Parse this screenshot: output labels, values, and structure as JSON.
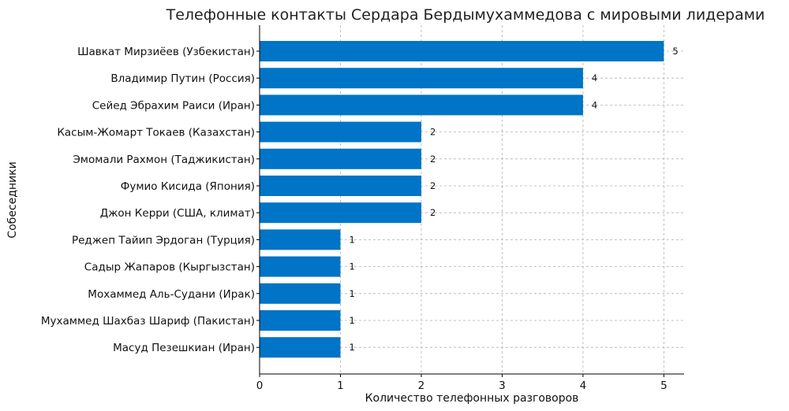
{
  "chart_data": {
    "type": "bar",
    "orientation": "horizontal",
    "title": "Телефонные контакты Сердара Бердымухаммедова с мировыми лидерами",
    "xlabel": "Количество телефонных разговоров",
    "ylabel": "Собеседники",
    "xlim": [
      0,
      5.25
    ],
    "xticks": [
      "0",
      "1",
      "2",
      "3",
      "4",
      "5"
    ],
    "grid": true,
    "bar_color": "#0074c7",
    "categories": [
      "Шавкат Мирзиёев (Узбекистан)",
      "Владимир Путин (Россия)",
      "Сейед Эбрахим Раиси (Иран)",
      "Касым-Жомарт Токаев (Казахстан)",
      "Эмомали Рахмон (Таджикистан)",
      "Фумио Кисида (Япония)",
      "Джон Керри (США, климат)",
      "Реджеп Тайип Эрдоган (Турция)",
      "Садыр Жапаров (Кыргызстан)",
      "Мохаммед Аль-Судани (Ирак)",
      "Мухаммед Шахбаз Шариф (Пакистан)",
      "Масуд Пезешкиан (Иран)"
    ],
    "values": [
      5,
      4,
      4,
      2,
      2,
      2,
      2,
      1,
      1,
      1,
      1,
      1
    ]
  }
}
